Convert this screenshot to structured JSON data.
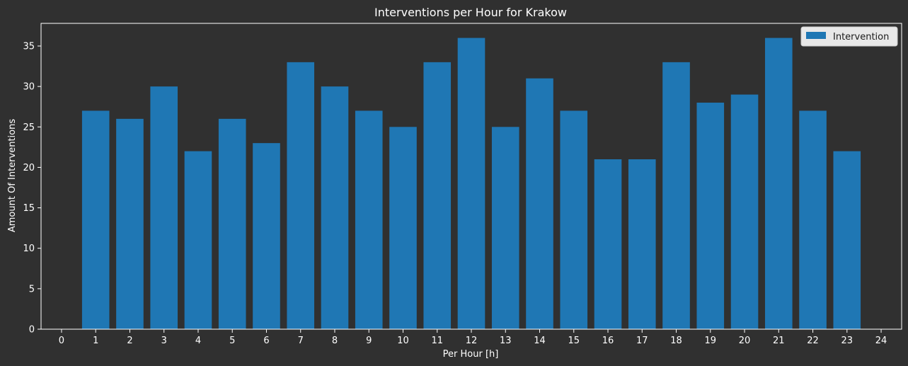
{
  "chart_data": {
    "type": "bar",
    "title": "Interventions per Hour for Krakow",
    "xlabel": "Per Hour [h]",
    "ylabel": "Amount Of Interventions",
    "x_ticks": [
      0,
      1,
      2,
      3,
      4,
      5,
      6,
      7,
      8,
      9,
      10,
      11,
      12,
      13,
      14,
      15,
      16,
      17,
      18,
      19,
      20,
      21,
      22,
      23,
      24
    ],
    "y_ticks": [
      0,
      5,
      10,
      15,
      20,
      25,
      30,
      35
    ],
    "xlim": [
      -0.6,
      24.6
    ],
    "ylim": [
      0,
      37.8
    ],
    "grid": false,
    "legend_position": "top-right",
    "series": [
      {
        "name": "Intervention",
        "color": "#1f77b4",
        "x": [
          1,
          2,
          3,
          4,
          5,
          6,
          7,
          8,
          9,
          10,
          11,
          12,
          13,
          14,
          15,
          16,
          17,
          18,
          19,
          20,
          21,
          22,
          23
        ],
        "values": [
          27,
          26,
          30,
          22,
          26,
          23,
          33,
          30,
          27,
          25,
          33,
          36,
          25,
          31,
          27,
          21,
          21,
          33,
          28,
          29,
          36,
          27,
          22
        ]
      }
    ]
  },
  "colors": {
    "background": "#303030",
    "axis": "#ffffff",
    "text": "#ffffff",
    "legend_background": "#e8e8e8"
  }
}
